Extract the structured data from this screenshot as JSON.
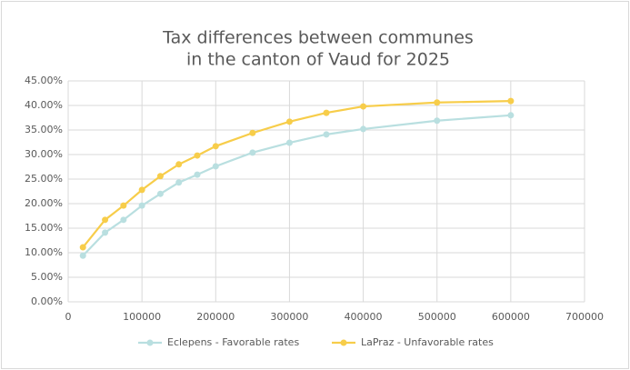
{
  "chart_data": {
    "type": "line",
    "title": [
      "Tax differences between communes",
      "in the canton of Vaud for 2025"
    ],
    "x": [
      20000,
      50000,
      75000,
      100000,
      125000,
      150000,
      175000,
      200000,
      250000,
      300000,
      350000,
      400000,
      500000,
      600000
    ],
    "series": [
      {
        "name": "Eclepens - Favorable rates",
        "color": "#b9dfe0",
        "values": [
          9.4,
          14.1,
          16.7,
          19.6,
          22.0,
          24.3,
          25.9,
          27.6,
          30.4,
          32.4,
          34.1,
          35.2,
          36.9,
          38.0
        ]
      },
      {
        "name": "LaPraz - Unfavorable rates",
        "color": "#f7cd4a",
        "values": [
          11.1,
          16.7,
          19.6,
          22.8,
          25.6,
          28.0,
          29.8,
          31.7,
          34.4,
          36.7,
          38.5,
          39.8,
          40.6,
          40.9
        ]
      }
    ],
    "xlim": [
      0,
      700000
    ],
    "xticks": [
      0,
      100000,
      200000,
      300000,
      400000,
      500000,
      600000,
      700000
    ],
    "ylim": [
      0,
      45
    ],
    "yticks": [
      {
        "value": 0,
        "label": "0.00%"
      },
      {
        "value": 5,
        "label": "5.00%"
      },
      {
        "value": 10,
        "label": "10.00%"
      },
      {
        "value": 15,
        "label": "15.00%"
      },
      {
        "value": 20,
        "label": "20.00%"
      },
      {
        "value": 25,
        "label": "25.00%"
      },
      {
        "value": 30,
        "label": "30.00%"
      },
      {
        "value": 35,
        "label": "35.00%"
      },
      {
        "value": 40,
        "label": "40.00%"
      },
      {
        "value": 45,
        "label": "45.00%"
      }
    ],
    "grid": true,
    "legend": "bottom"
  }
}
